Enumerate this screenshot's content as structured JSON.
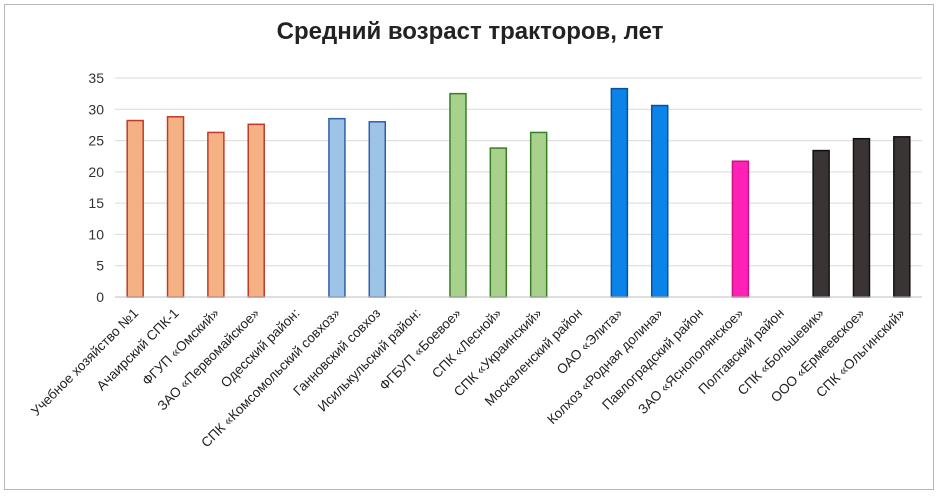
{
  "chart_data": {
    "type": "bar",
    "title": "Средний возраст тракторов, лет",
    "xlabel": "",
    "ylabel": "",
    "ylim": [
      0,
      35
    ],
    "yticks": [
      0,
      5,
      10,
      15,
      20,
      25,
      30,
      35
    ],
    "grid": true,
    "legend": "none",
    "categories": [
      "Учебное хозяйство №1",
      "Ачаирский СПК-1",
      "ФГУП «Омский»",
      "ЗАО «Первомайское»",
      "Одесский район:",
      "СПК «Комсомольский совхоз»",
      "Ганновский совхоз",
      "Исилькульский район:",
      "ФГБУП «Боевое»",
      "СПК «Лесной»",
      "СПК «Украинский»",
      "Москаленский район",
      "ОАО «Элита»",
      "Колхоз «Родная долина»",
      "Павлоградский район",
      "ЗАО «Яснополянское»",
      "Полтавский район",
      "СПК «Большевик»",
      "ООО «Ермеевское»",
      "СПК «Ольгинский»"
    ],
    "values": [
      28.2,
      28.8,
      26.3,
      27.6,
      null,
      28.5,
      28.0,
      null,
      32.5,
      23.8,
      26.3,
      null,
      33.3,
      30.6,
      null,
      21.7,
      null,
      23.4,
      25.3,
      25.6
    ],
    "bar_fills": [
      "#f4b183",
      "#f4b183",
      "#f4b183",
      "#f4b183",
      null,
      "#9dc3e6",
      "#9dc3e6",
      null,
      "#a9d18e",
      "#a9d18e",
      "#a9d18e",
      null,
      "#0a84e8",
      "#0a84e8",
      null,
      "#ff21b5",
      null,
      "#3a3435",
      "#3a3435",
      "#3a3435"
    ],
    "bar_strokes": [
      "#c0392b",
      "#c0392b",
      "#c0392b",
      "#c0392b",
      null,
      "#2e5fa8",
      "#2e5fa8",
      null,
      "#3b7d23",
      "#3b7d23",
      "#3b7d23",
      null,
      "#0a4fa0",
      "#0a4fa0",
      null,
      "#c71585",
      null,
      "#111111",
      "#111111",
      "#111111"
    ]
  }
}
